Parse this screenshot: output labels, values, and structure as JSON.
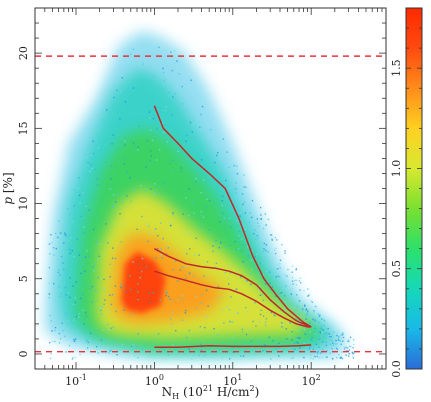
{
  "chart_data": {
    "type": "heatmap",
    "description_free": true,
    "xlabel": "N_H (10^21 H/cm^2)",
    "xlabel_parts": {
      "base": "N",
      "sub": "H",
      "rest": " (10",
      "sup1": "21",
      "unit": " H/cm",
      "sup2": "2",
      "close": ")"
    },
    "ylabel": "p [%]",
    "ylabel_parts": {
      "p": "p",
      "unit": " [%]"
    },
    "x_scale": "log",
    "xlim": [
      0.03,
      900
    ],
    "ylim": [
      -1,
      23
    ],
    "x_ticks": [
      {
        "value": 0.1,
        "base": "10",
        "exp": "-1"
      },
      {
        "value": 1,
        "base": "10",
        "exp": "0"
      },
      {
        "value": 10,
        "base": "10",
        "exp": "1"
      },
      {
        "value": 100,
        "base": "10",
        "exp": "2"
      }
    ],
    "y_ticks": [
      0,
      5,
      10,
      15,
      20
    ],
    "y_tick_labels": [
      "0",
      "5",
      "10",
      "15",
      "20"
    ],
    "reference_lines": [
      {
        "y": 19.8,
        "style": "dashed",
        "color": "#e8323c"
      },
      {
        "y": 0.15,
        "style": "dashed",
        "color": "#e8323c"
      }
    ],
    "curves": [
      {
        "role": "upper envelope",
        "color": "#c02828",
        "points": [
          [
            1.0,
            16.5
          ],
          [
            1.3,
            15.0
          ],
          [
            2.0,
            14.0
          ],
          [
            3.0,
            13.0
          ],
          [
            5.0,
            12.0
          ],
          [
            8.0,
            11.0
          ],
          [
            12.0,
            9.0
          ],
          [
            18.0,
            6.5
          ],
          [
            25.0,
            5.0
          ],
          [
            35.0,
            4.0
          ],
          [
            50.0,
            3.0
          ],
          [
            65.0,
            2.5
          ],
          [
            80.0,
            2.1
          ],
          [
            100.0,
            1.8
          ]
        ]
      },
      {
        "role": "upper median band",
        "color": "#c02828",
        "points": [
          [
            1.0,
            7.0
          ],
          [
            1.5,
            6.5
          ],
          [
            2.5,
            6.0
          ],
          [
            4.0,
            5.8
          ],
          [
            6.0,
            5.7
          ],
          [
            9.0,
            5.5
          ],
          [
            13.0,
            5.2
          ],
          [
            20.0,
            4.6
          ],
          [
            30.0,
            3.6
          ],
          [
            45.0,
            2.8
          ],
          [
            65.0,
            2.2
          ],
          [
            90.0,
            1.9
          ],
          [
            100.0,
            1.8
          ]
        ]
      },
      {
        "role": "median",
        "color": "#c02828",
        "points": [
          [
            1.0,
            5.5
          ],
          [
            1.5,
            5.2
          ],
          [
            2.5,
            4.9
          ],
          [
            4.0,
            4.6
          ],
          [
            6.0,
            4.4
          ],
          [
            9.0,
            4.3
          ],
          [
            13.0,
            4.0
          ],
          [
            20.0,
            3.5
          ],
          [
            30.0,
            2.9
          ],
          [
            45.0,
            2.4
          ],
          [
            65.0,
            2.0
          ],
          [
            90.0,
            1.8
          ],
          [
            100.0,
            1.8
          ]
        ]
      },
      {
        "role": "lower envelope",
        "color": "#c02828",
        "points": [
          [
            1.0,
            0.45
          ],
          [
            2.0,
            0.45
          ],
          [
            5.0,
            0.55
          ],
          [
            10.0,
            0.5
          ],
          [
            20.0,
            0.5
          ],
          [
            40.0,
            0.5
          ],
          [
            70.0,
            0.55
          ],
          [
            100.0,
            0.6
          ]
        ]
      }
    ],
    "density_ridge": [
      [
        0.06,
        5.0
      ],
      [
        0.3,
        5.0
      ],
      [
        0.6,
        4.8
      ],
      [
        1.0,
        4.6
      ],
      [
        3.0,
        4.2
      ],
      [
        10.0,
        3.5
      ],
      [
        30.0,
        2.6
      ],
      [
        70.0,
        2.0
      ],
      [
        100.0,
        1.8
      ],
      [
        200.0,
        1.7
      ]
    ],
    "colorbar": {
      "range": [
        0.0,
        1.8
      ],
      "ticks": [
        0.0,
        0.5,
        1.0,
        1.5
      ],
      "tick_labels": [
        "0.0",
        "0.5",
        "1.0",
        "1.5"
      ],
      "colormap": "rainbow",
      "colors": [
        "#2b6cd8",
        "#19b9e8",
        "#16d8b8",
        "#2de06a",
        "#7ae030",
        "#d8e830",
        "#ffd021",
        "#ff8c1a",
        "#ff4a0f",
        "#ff2a00"
      ]
    }
  }
}
